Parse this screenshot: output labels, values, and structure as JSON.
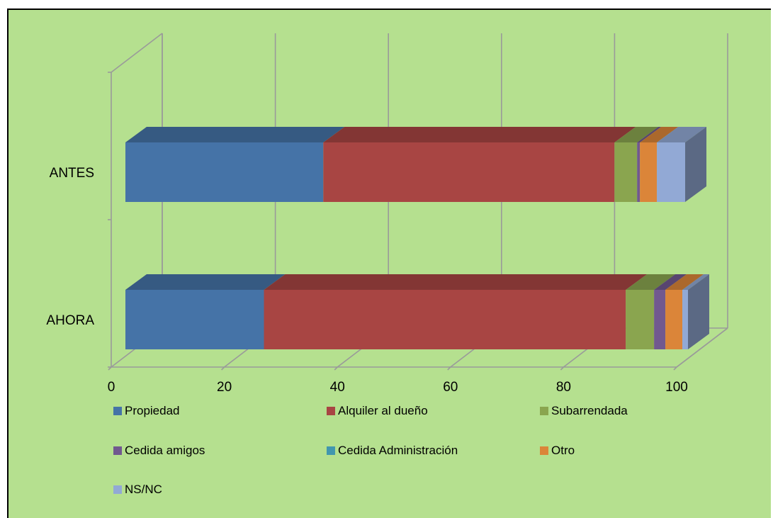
{
  "chart_data": {
    "type": "bar",
    "orientation": "horizontal",
    "stacked": true,
    "three_d": true,
    "categories": [
      "ANTES",
      "AHORA"
    ],
    "series": [
      {
        "name": "Propiedad",
        "color": "#4573a7",
        "values": [
          35,
          24.5
        ]
      },
      {
        "name": "Alquiler al dueño",
        "color": "#a84543",
        "values": [
          51.5,
          64
        ]
      },
      {
        "name": "Subarrendada",
        "color": "#8aa54f",
        "values": [
          4,
          5
        ]
      },
      {
        "name": "Cedida amigos",
        "color": "#71598f",
        "values": [
          0.5,
          2
        ]
      },
      {
        "name": "Cedida Administración",
        "color": "#4197ae",
        "values": [
          0,
          0
        ]
      },
      {
        "name": "Otro",
        "color": "#db8539",
        "values": [
          3,
          3
        ]
      },
      {
        "name": "NS/NC",
        "color": "#92a9d5",
        "values": [
          5,
          1
        ]
      }
    ],
    "xlim": [
      0,
      100
    ],
    "x_ticks": [
      "0",
      "20",
      "40",
      "60",
      "80",
      "100"
    ],
    "grid": true,
    "legend_position": "bottom"
  }
}
